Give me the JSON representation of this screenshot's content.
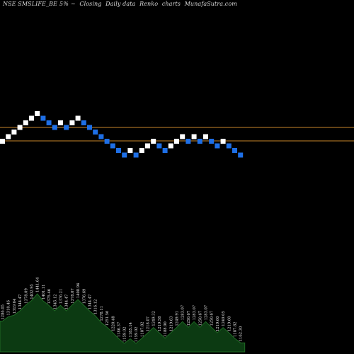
{
  "header": {
    "symbol": "NSE SMSLIFE_BE",
    "box_size": "5%",
    "fragment": "~",
    "closing": "Closing",
    "data": "Daily data",
    "renko": "Renko",
    "charts": "charts",
    "site": "MunafaSutra.com"
  },
  "colors": {
    "background": "#000000",
    "up_brick": "#ffffff",
    "down_brick": "#1e6fe6",
    "reference_line": "#c8862a",
    "volume_fill": "#0c3a12",
    "volume_line": "#1f6a24",
    "label_text": "#e6e6e6"
  },
  "chart_data": {
    "type": "renko",
    "reference_lines": [
      1400,
      1300
    ],
    "bricks": [
      {
        "dir": "up",
        "price": 1286.05
      },
      {
        "dir": "up",
        "price": 1310.46
      },
      {
        "dir": "up",
        "price": 1319.64
      },
      {
        "dir": "up",
        "price": 1344.47
      },
      {
        "dir": "up",
        "price": 1378.09
      },
      {
        "dir": "up",
        "price": 1402.95
      },
      {
        "dir": "up",
        "price": 1441.64
      },
      {
        "dir": "down",
        "price": 1401.11
      },
      {
        "dir": "down",
        "price": 1375.46
      },
      {
        "dir": "down",
        "price": 1345.12
      },
      {
        "dir": "up",
        "price": 1376.21
      },
      {
        "dir": "down",
        "price": 1344.47
      },
      {
        "dir": "up",
        "price": 1378.07
      },
      {
        "dir": "up",
        "price": 1408.94
      },
      {
        "dir": "down",
        "price": 1376.69
      },
      {
        "dir": "down",
        "price": 1344.47
      },
      {
        "dir": "down",
        "price": 1316.12
      },
      {
        "dir": "down",
        "price": 1278.11
      },
      {
        "dir": "down",
        "price": 1251.56
      },
      {
        "dir": "down",
        "price": 1220.48
      },
      {
        "dir": "down",
        "price": 1186.37
      },
      {
        "dir": "down",
        "price": 1159.02
      },
      {
        "dir": "up",
        "price": 1185.14
      },
      {
        "dir": "down",
        "price": 1159.02
      },
      {
        "dir": "up",
        "price": 1187.82
      },
      {
        "dir": "up",
        "price": 1218.07
      },
      {
        "dir": "up",
        "price": 1249.32
      },
      {
        "dir": "down",
        "price": 1219.58
      },
      {
        "dir": "down",
        "price": 1188.9
      },
      {
        "dir": "up",
        "price": 1219.63
      },
      {
        "dir": "up",
        "price": 1249.91
      },
      {
        "dir": "up",
        "price": 1283.07
      },
      {
        "dir": "down",
        "price": 1250.67
      },
      {
        "dir": "up",
        "price": 1283.07
      },
      {
        "dir": "down",
        "price": 1250.67
      },
      {
        "dir": "up",
        "price": 1283.07
      },
      {
        "dir": "down",
        "price": 1250.67
      },
      {
        "dir": "down",
        "price": 1219.6
      },
      {
        "dir": "up",
        "price": 1249.05
      },
      {
        "dir": "down",
        "price": 1219.6
      },
      {
        "dir": "down",
        "price": 1187.82
      },
      {
        "dir": "down",
        "price": 1162.3
      }
    ]
  }
}
